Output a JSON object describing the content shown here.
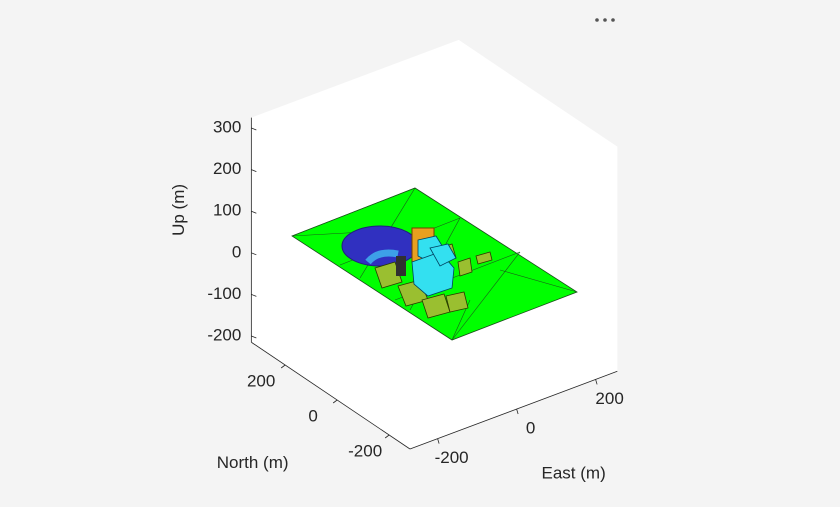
{
  "chart_data": {
    "type": "scene3d",
    "xlabel": "East (m)",
    "ylabel": "North (m)",
    "zlabel": "Up (m)",
    "xlim": [
      -270,
      255
    ],
    "ylim": [
      -280,
      330
    ],
    "zlim": [
      -215,
      325
    ],
    "xticks": [
      -200,
      0,
      200
    ],
    "yticks": [
      -200,
      0,
      200
    ],
    "zticks": [
      -200,
      -100,
      0,
      100,
      200,
      300
    ]
  }
}
